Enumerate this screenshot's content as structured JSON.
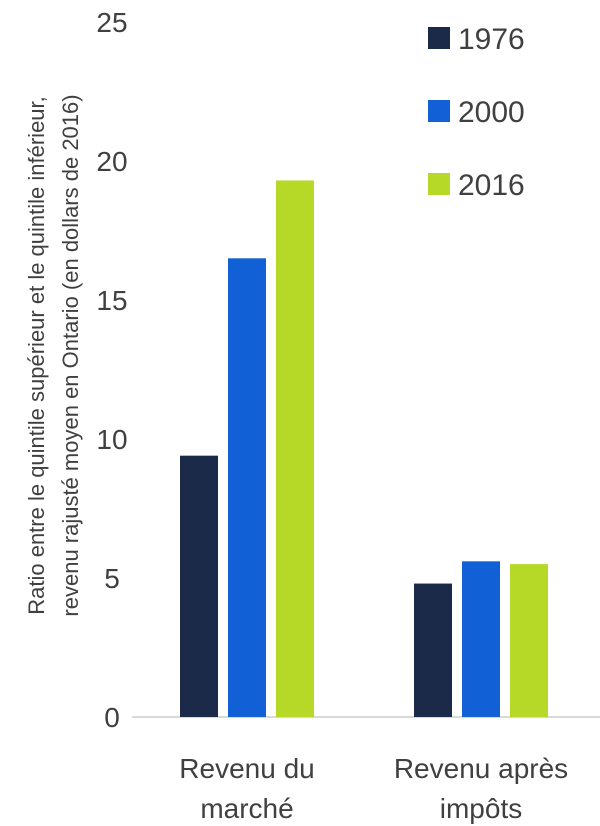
{
  "chart_data": {
    "type": "bar",
    "title": "",
    "xlabel": "",
    "ylabel_lines": [
      "Ratio entre le quintile supérieur et le quintile inférieur,",
      "revenu rajusté moyen en Ontario (en dollars de 2016)"
    ],
    "categories": [
      [
        "Revenu du",
        "marché"
      ],
      [
        "Revenu après",
        "impôts"
      ]
    ],
    "series": [
      {
        "name": "1976",
        "color": "#1b2a49",
        "values": [
          9.4,
          4.8
        ]
      },
      {
        "name": "2000",
        "color": "#1160d6",
        "values": [
          16.5,
          5.6
        ]
      },
      {
        "name": "2016",
        "color": "#b6d928",
        "values": [
          19.3,
          5.5
        ]
      }
    ],
    "ylim": [
      0,
      25
    ],
    "yticks": [
      "0",
      "5",
      "10",
      "15",
      "20",
      "25"
    ],
    "grid": false,
    "legend_position": "top-right"
  }
}
